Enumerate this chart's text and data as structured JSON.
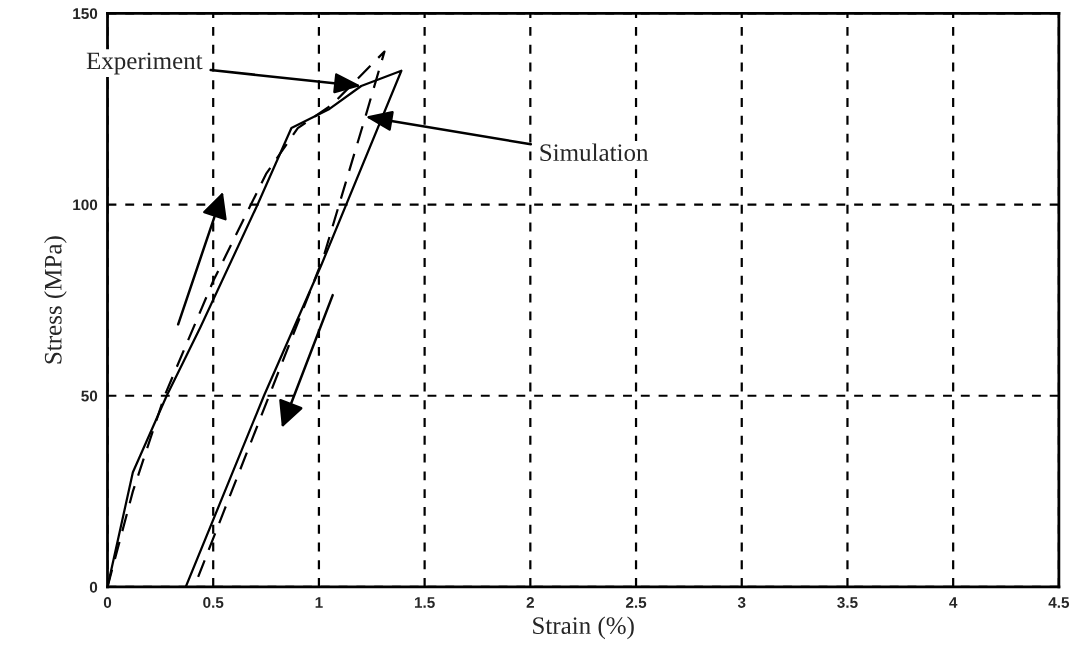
{
  "chart_data": {
    "type": "line",
    "xlabel": "Strain (%)",
    "ylabel": "Stress (MPa)",
    "xlim": [
      0,
      4.5
    ],
    "xticks": [
      0,
      {
        "value": 0.5,
        "label": "0.5"
      },
      1,
      {
        "value": 1.5,
        "label": "1.5"
      },
      2,
      {
        "value": 2.5,
        "label": "2.5"
      },
      3,
      {
        "value": 3.5,
        "label": "3.5"
      },
      4,
      {
        "value": 4.5,
        "label": "4.5"
      }
    ],
    "ylim": [
      0,
      150
    ],
    "yticks": [
      0,
      50,
      100,
      150
    ],
    "grid": true,
    "legend": false,
    "marker": "none",
    "series": [
      {
        "color": "#000000",
        "line_style": "solid",
        "x": [
          0,
          0.12,
          0.28,
          0.44,
          0.71,
          0.87,
          1.05,
          1.2,
          1.39,
          1.01,
          0.74,
          0.37
        ],
        "values": [
          0,
          30,
          50,
          68,
          100,
          120,
          125,
          131,
          135,
          84,
          50,
          0
        ]
      },
      {
        "color": "#000000",
        "line_style": "dashed",
        "x": [
          0,
          0.12,
          0.27,
          0.5,
          0.75,
          0.9,
          1.06,
          1.31,
          1.22,
          1.02,
          0.41
        ],
        "values": [
          0,
          25,
          50,
          80,
          108,
          120,
          126,
          140,
          123,
          86,
          0
        ]
      }
    ],
    "annotations": [
      {
        "text": "Experiment",
        "x": 1.2,
        "y": 131
      },
      {
        "text": "Simulation",
        "x": 1.22,
        "y": 123
      }
    ]
  }
}
